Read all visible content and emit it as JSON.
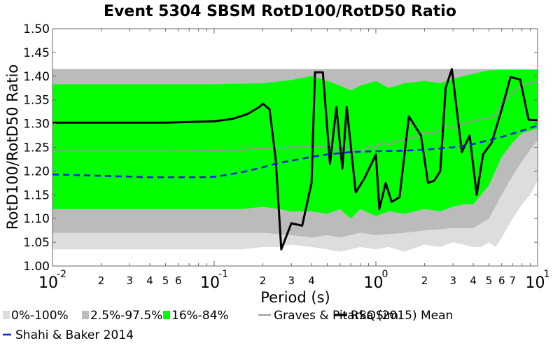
{
  "chart_data": {
    "type": "area",
    "title": "Event 5304 SBSM RotD100/RotD50 Ratio",
    "xlabel": "Period (s)",
    "ylabel": "RotD100/RotD50 Ratio",
    "xscale": "log",
    "xlim": [
      0.01,
      10
    ],
    "ylim": [
      1.0,
      1.5
    ],
    "yticks": [
      "1.00",
      "1.05",
      "1.10",
      "1.15",
      "1.20",
      "1.25",
      "1.30",
      "1.35",
      "1.40",
      "1.45",
      "1.50"
    ],
    "xmajor_ticks": [
      {
        "base": "10",
        "exp": "-2",
        "value": 0.01
      },
      {
        "base": "10",
        "exp": "-1",
        "value": 0.1
      },
      {
        "base": "10",
        "exp": "0",
        "value": 1
      },
      {
        "base": "10",
        "exp": "1",
        "value": 10
      }
    ],
    "xminor_labels": [
      "2",
      "3",
      "4",
      "5",
      "6",
      "7"
    ],
    "legend_position": "bottom",
    "grid": false,
    "colors": {
      "band_0_100": "#dddddd",
      "band_2_5_97_5": "#bbbbbb",
      "band_16_84": "#00ff00",
      "mean": "#999999",
      "rsqsim": "#000000",
      "shahi": "#1f1fe0"
    },
    "legend": [
      {
        "key": "band_0_100",
        "label": "0%-100%",
        "kind": "patch"
      },
      {
        "key": "band_2_5_97_5",
        "label": "2.5%-97.5%",
        "kind": "patch"
      },
      {
        "key": "band_16_84",
        "label": "16%-84%",
        "kind": "patch"
      },
      {
        "key": "mean",
        "label": "Graves & Pitarka (2015) Mean",
        "kind": "line"
      },
      {
        "key": "rsqsim",
        "label": "RSQSim",
        "kind": "line"
      },
      {
        "key": "shahi",
        "label": "Shahi & Baker 2014",
        "kind": "dash"
      }
    ],
    "bands": [
      {
        "key": "band_0_100",
        "upper": [
          [
            0.01,
            1.415
          ],
          [
            0.5,
            1.415
          ],
          [
            10,
            1.415
          ]
        ],
        "lower": [
          [
            0.01,
            1.035
          ],
          [
            0.1,
            1.035
          ],
          [
            0.15,
            1.035
          ],
          [
            0.2,
            1.04
          ],
          [
            0.25,
            1.04
          ],
          [
            0.3,
            1.045
          ],
          [
            0.4,
            1.04
          ],
          [
            0.5,
            1.035
          ],
          [
            0.6,
            1.03
          ],
          [
            0.8,
            1.04
          ],
          [
            1.0,
            1.035
          ],
          [
            1.2,
            1.04
          ],
          [
            1.5,
            1.03
          ],
          [
            2.0,
            1.045
          ],
          [
            2.5,
            1.04
          ],
          [
            3.0,
            1.05
          ],
          [
            3.5,
            1.045
          ],
          [
            4.0,
            1.04
          ],
          [
            4.5,
            1.04
          ],
          [
            5.0,
            1.05
          ],
          [
            5.5,
            1.04
          ],
          [
            6.0,
            1.06
          ],
          [
            7.0,
            1.1
          ],
          [
            8.0,
            1.13
          ],
          [
            9.0,
            1.15
          ],
          [
            10,
            1.18
          ]
        ]
      },
      {
        "key": "band_2_5_97_5",
        "upper": [
          [
            0.01,
            1.415
          ],
          [
            0.5,
            1.415
          ],
          [
            10,
            1.415
          ]
        ],
        "lower": [
          [
            0.01,
            1.07
          ],
          [
            0.1,
            1.07
          ],
          [
            0.15,
            1.07
          ],
          [
            0.2,
            1.07
          ],
          [
            0.3,
            1.065
          ],
          [
            0.4,
            1.06
          ],
          [
            0.5,
            1.065
          ],
          [
            0.6,
            1.06
          ],
          [
            0.8,
            1.07
          ],
          [
            1.0,
            1.065
          ],
          [
            1.5,
            1.07
          ],
          [
            2.0,
            1.075
          ],
          [
            3.0,
            1.08
          ],
          [
            4.0,
            1.08
          ],
          [
            5.0,
            1.1
          ],
          [
            6.0,
            1.15
          ],
          [
            7.0,
            1.19
          ],
          [
            8.0,
            1.22
          ],
          [
            9.0,
            1.245
          ],
          [
            10,
            1.265
          ]
        ]
      },
      {
        "key": "band_16_84",
        "upper": [
          [
            0.01,
            1.383
          ],
          [
            0.1,
            1.383
          ],
          [
            0.15,
            1.384
          ],
          [
            0.2,
            1.385
          ],
          [
            0.3,
            1.392
          ],
          [
            0.4,
            1.4
          ],
          [
            0.5,
            1.39
          ],
          [
            0.6,
            1.38
          ],
          [
            0.7,
            1.37
          ],
          [
            0.8,
            1.38
          ],
          [
            1.0,
            1.39
          ],
          [
            1.2,
            1.375
          ],
          [
            1.5,
            1.385
          ],
          [
            2.0,
            1.39
          ],
          [
            2.5,
            1.385
          ],
          [
            3.0,
            1.395
          ],
          [
            3.5,
            1.4
          ],
          [
            4.0,
            1.405
          ],
          [
            5.0,
            1.412
          ],
          [
            6.0,
            1.413
          ],
          [
            7.0,
            1.413
          ],
          [
            10,
            1.413
          ]
        ],
        "lower": [
          [
            0.01,
            1.12
          ],
          [
            0.1,
            1.12
          ],
          [
            0.15,
            1.12
          ],
          [
            0.2,
            1.125
          ],
          [
            0.25,
            1.12
          ],
          [
            0.3,
            1.115
          ],
          [
            0.4,
            1.115
          ],
          [
            0.5,
            1.11
          ],
          [
            0.6,
            1.12
          ],
          [
            0.7,
            1.1
          ],
          [
            0.8,
            1.12
          ],
          [
            1.0,
            1.105
          ],
          [
            1.2,
            1.115
          ],
          [
            1.5,
            1.11
          ],
          [
            2.0,
            1.12
          ],
          [
            2.5,
            1.115
          ],
          [
            3.0,
            1.125
          ],
          [
            3.5,
            1.13
          ],
          [
            4.0,
            1.13
          ],
          [
            5.0,
            1.17
          ],
          [
            6.0,
            1.23
          ],
          [
            7.0,
            1.26
          ],
          [
            8.0,
            1.28
          ],
          [
            10,
            1.29
          ]
        ]
      }
    ],
    "series": [
      {
        "key": "mean",
        "name": "Graves & Pitarka (2015) Mean",
        "points": [
          [
            0.01,
            1.242
          ],
          [
            0.05,
            1.242
          ],
          [
            0.1,
            1.243
          ],
          [
            0.15,
            1.245
          ],
          [
            0.2,
            1.248
          ],
          [
            0.3,
            1.25
          ],
          [
            0.4,
            1.252
          ],
          [
            0.5,
            1.25
          ],
          [
            0.6,
            1.248
          ],
          [
            0.8,
            1.242
          ],
          [
            0.9,
            1.25
          ],
          [
            1.0,
            1.25
          ],
          [
            1.1,
            1.26
          ],
          [
            1.2,
            1.255
          ],
          [
            1.4,
            1.265
          ],
          [
            1.6,
            1.268
          ],
          [
            2.0,
            1.28
          ],
          [
            2.3,
            1.28
          ],
          [
            2.7,
            1.295
          ],
          [
            3.0,
            1.29
          ],
          [
            3.5,
            1.3
          ],
          [
            4.0,
            1.305
          ],
          [
            4.5,
            1.31
          ],
          [
            5.0,
            1.31
          ],
          [
            5.5,
            1.32
          ],
          [
            6.0,
            1.34
          ],
          [
            7.0,
            1.365
          ],
          [
            8.0,
            1.38
          ],
          [
            10,
            1.39
          ]
        ]
      },
      {
        "key": "rsqsim",
        "name": "RSQSim",
        "points": [
          [
            0.01,
            1.302
          ],
          [
            0.05,
            1.302
          ],
          [
            0.1,
            1.305
          ],
          [
            0.13,
            1.31
          ],
          [
            0.16,
            1.32
          ],
          [
            0.19,
            1.335
          ],
          [
            0.2,
            1.342
          ],
          [
            0.22,
            1.33
          ],
          [
            0.24,
            1.225
          ],
          [
            0.26,
            1.035
          ],
          [
            0.3,
            1.09
          ],
          [
            0.35,
            1.085
          ],
          [
            0.4,
            1.175
          ],
          [
            0.42,
            1.408
          ],
          [
            0.47,
            1.408
          ],
          [
            0.52,
            1.215
          ],
          [
            0.57,
            1.335
          ],
          [
            0.62,
            1.205
          ],
          [
            0.66,
            1.335
          ],
          [
            0.75,
            1.155
          ],
          [
            0.85,
            1.185
          ],
          [
            1.0,
            1.235
          ],
          [
            1.05,
            1.12
          ],
          [
            1.15,
            1.175
          ],
          [
            1.25,
            1.135
          ],
          [
            1.4,
            1.145
          ],
          [
            1.6,
            1.315
          ],
          [
            1.9,
            1.275
          ],
          [
            2.1,
            1.175
          ],
          [
            2.3,
            1.18
          ],
          [
            2.5,
            1.2
          ],
          [
            2.7,
            1.375
          ],
          [
            2.95,
            1.415
          ],
          [
            3.4,
            1.24
          ],
          [
            3.8,
            1.275
          ],
          [
            4.2,
            1.15
          ],
          [
            4.6,
            1.235
          ],
          [
            5.2,
            1.26
          ],
          [
            6.0,
            1.33
          ],
          [
            6.8,
            1.398
          ],
          [
            7.8,
            1.393
          ],
          [
            8.8,
            1.308
          ],
          [
            10,
            1.307
          ]
        ]
      },
      {
        "key": "shahi",
        "name": "Shahi & Baker 2014",
        "points": [
          [
            0.01,
            1.193
          ],
          [
            0.02,
            1.19
          ],
          [
            0.04,
            1.187
          ],
          [
            0.06,
            1.187
          ],
          [
            0.08,
            1.187
          ],
          [
            0.1,
            1.188
          ],
          [
            0.12,
            1.192
          ],
          [
            0.15,
            1.198
          ],
          [
            0.2,
            1.208
          ],
          [
            0.25,
            1.217
          ],
          [
            0.3,
            1.222
          ],
          [
            0.4,
            1.23
          ],
          [
            0.5,
            1.235
          ],
          [
            0.7,
            1.24
          ],
          [
            1.0,
            1.242
          ],
          [
            1.5,
            1.243
          ],
          [
            2.0,
            1.245
          ],
          [
            3.0,
            1.25
          ],
          [
            4.0,
            1.257
          ],
          [
            5.0,
            1.265
          ],
          [
            6.0,
            1.272
          ],
          [
            8.0,
            1.285
          ],
          [
            10,
            1.296
          ]
        ]
      }
    ]
  }
}
